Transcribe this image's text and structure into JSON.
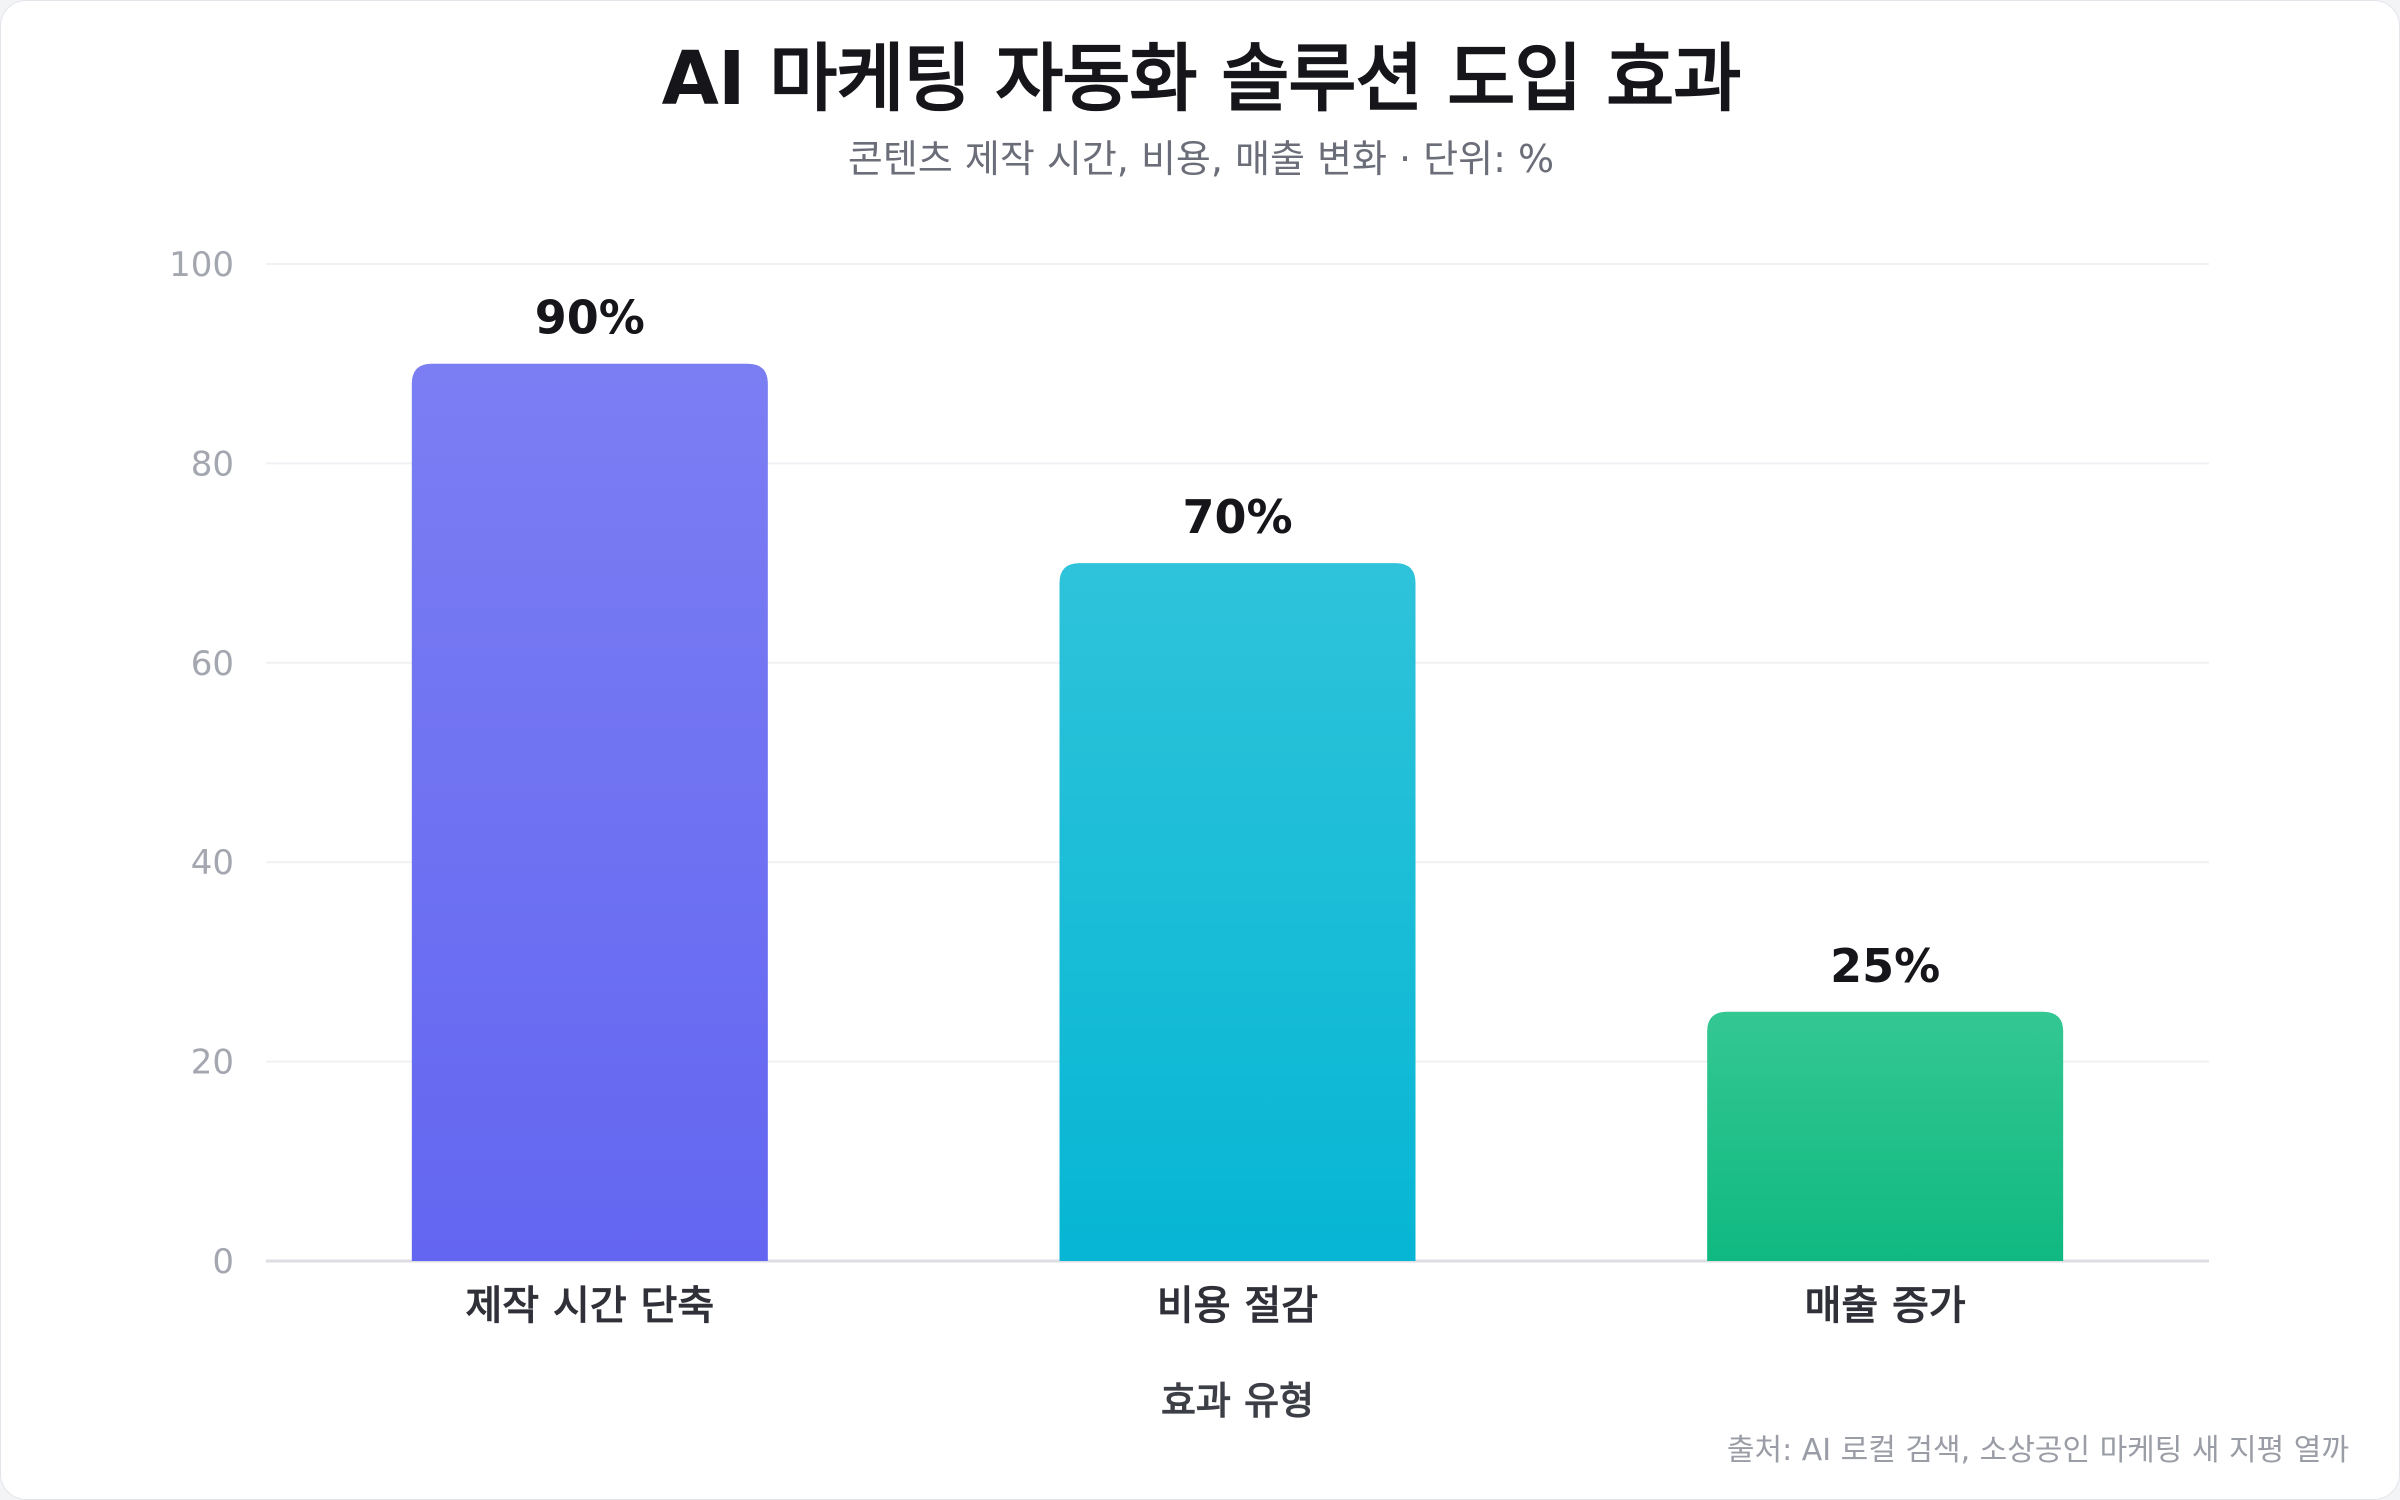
{
  "chart_data": {
    "type": "bar",
    "title": "AI 마케팅 자동화 솔루션 도입 효과",
    "subtitle": "콘텐츠 제작 시간, 비용, 매출 변화 · 단위: %",
    "xlabel": "효과 유형",
    "ylabel": "",
    "categories": [
      "제작 시간 단축",
      "비용 절감",
      "매출 증가"
    ],
    "values": [
      90,
      70,
      25
    ],
    "value_labels": [
      "90%",
      "70%",
      "25%"
    ],
    "ylim": [
      0,
      100
    ],
    "yticks": [
      0,
      20,
      40,
      60,
      80,
      100
    ],
    "grid": true,
    "legend": "none",
    "colors": [
      {
        "top": "#7b7ef3",
        "bottom": "#6366f1"
      },
      {
        "top": "#2ec3da",
        "bottom": "#06b6d4"
      },
      {
        "top": "#34c793",
        "bottom": "#10b981"
      }
    ],
    "source": "출처: AI 로컬 검색, 소상공인 마케팅 새 지평 열까"
  }
}
